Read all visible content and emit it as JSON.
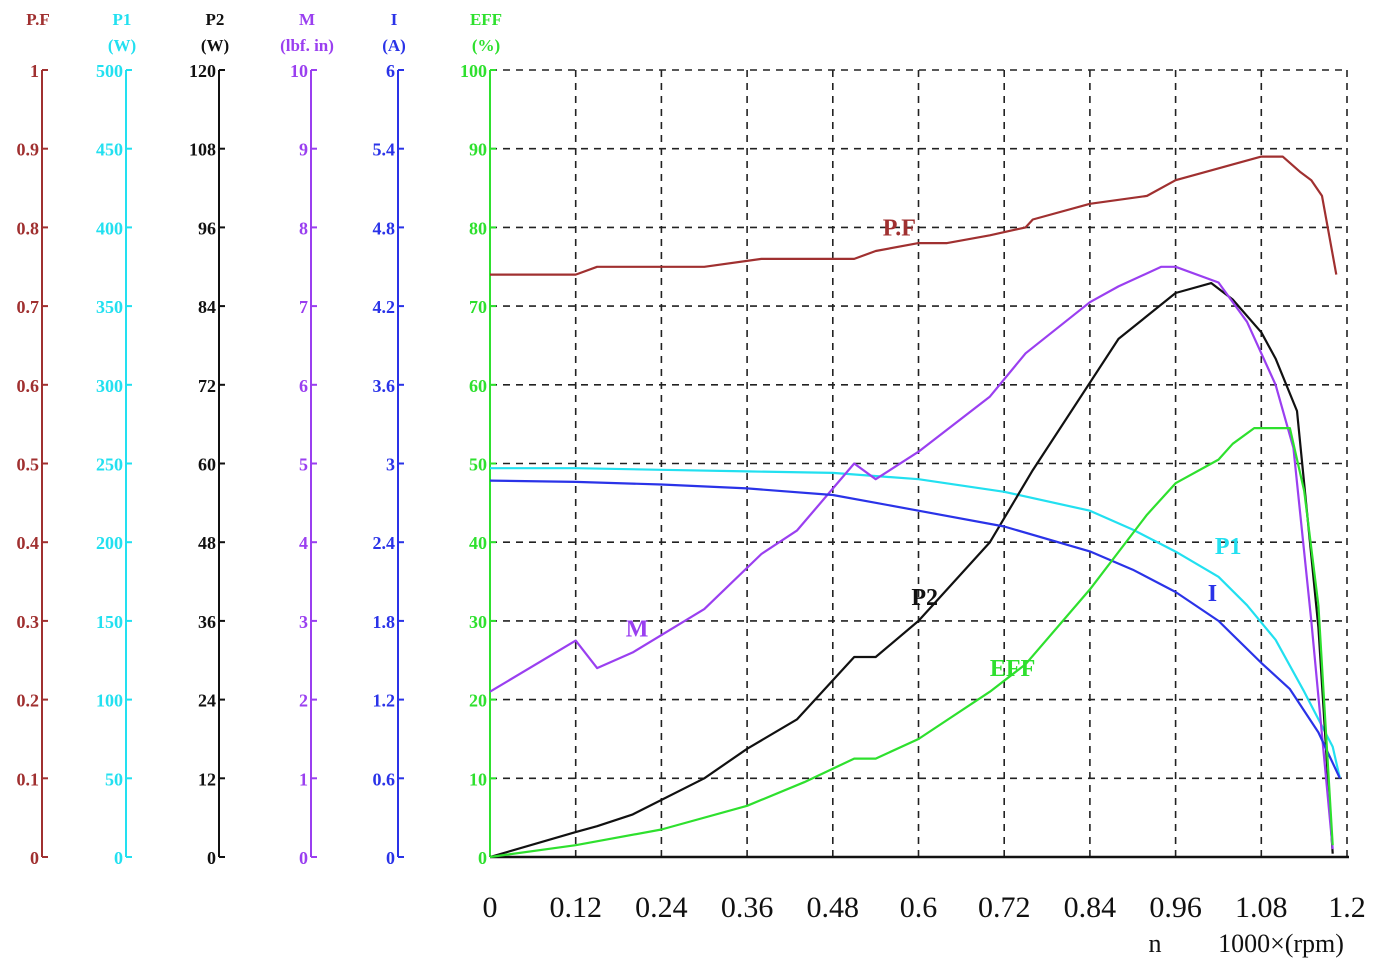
{
  "chart_data": {
    "type": "line",
    "x_ticks": [
      "0",
      "0.12",
      "0.24",
      "0.36",
      "0.48",
      "0.6",
      "0.72",
      "0.84",
      "0.96",
      "1.08",
      "1.2"
    ],
    "x_label_left": "n",
    "x_label_right": "1000×(rpm)",
    "xlim": [
      0,
      1.2
    ],
    "grid": true,
    "axes": [
      {
        "id": "pf",
        "name": "P.F",
        "unit": "",
        "color": "#a03030",
        "ticks": [
          "0",
          "0.1",
          "0.2",
          "0.3",
          "0.4",
          "0.5",
          "0.6",
          "0.7",
          "0.8",
          "0.9",
          "1"
        ],
        "ylim": [
          0,
          1
        ]
      },
      {
        "id": "p1",
        "name": "P1",
        "unit": "(W)",
        "color": "#22e0f0",
        "ticks": [
          "0",
          "50",
          "100",
          "150",
          "200",
          "250",
          "300",
          "350",
          "400",
          "450",
          "500"
        ],
        "ylim": [
          0,
          500
        ]
      },
      {
        "id": "p2",
        "name": "P2",
        "unit": "(W)",
        "color": "#111111",
        "ticks": [
          "0",
          "12",
          "24",
          "36",
          "48",
          "60",
          "72",
          "84",
          "96",
          "108",
          "120"
        ],
        "ylim": [
          0,
          120
        ]
      },
      {
        "id": "m",
        "name": "M",
        "unit": "(lbf. in)",
        "color": "#9a3ff0",
        "ticks": [
          "0",
          "1",
          "2",
          "3",
          "4",
          "5",
          "6",
          "7",
          "8",
          "9",
          "10"
        ],
        "ylim": [
          0,
          10
        ]
      },
      {
        "id": "i",
        "name": "I",
        "unit": "(A)",
        "color": "#2a33e8",
        "ticks": [
          "0",
          "0.6",
          "1.2",
          "1.8",
          "2.4",
          "3",
          "3.6",
          "4.2",
          "4.8",
          "5.4",
          "6"
        ],
        "ylim": [
          0,
          6
        ]
      },
      {
        "id": "eff",
        "name": "EFF",
        "unit": "(%)",
        "color": "#2ee02e",
        "ticks": [
          "0",
          "10",
          "20",
          "30",
          "40",
          "50",
          "60",
          "70",
          "80",
          "90",
          "100"
        ],
        "ylim": [
          0,
          100
        ]
      }
    ],
    "series": [
      {
        "name": "P.F",
        "axis": "pf",
        "color": "#a03030",
        "x": [
          0,
          0.12,
          0.15,
          0.3,
          0.38,
          0.51,
          0.54,
          0.6,
          0.64,
          0.7,
          0.75,
          0.76,
          0.84,
          0.92,
          0.96,
          1.0,
          1.04,
          1.08,
          1.11,
          1.135,
          1.15,
          1.165,
          1.185
        ],
        "y": [
          0.74,
          0.74,
          0.75,
          0.75,
          0.76,
          0.76,
          0.77,
          0.78,
          0.78,
          0.79,
          0.8,
          0.81,
          0.83,
          0.84,
          0.86,
          0.87,
          0.88,
          0.89,
          0.89,
          0.87,
          0.86,
          0.84,
          0.74
        ]
      },
      {
        "name": "P1",
        "axis": "p1",
        "color": "#22e0f0",
        "x": [
          0,
          0.12,
          0.24,
          0.36,
          0.48,
          0.6,
          0.72,
          0.84,
          0.9,
          0.96,
          1.02,
          1.06,
          1.1,
          1.14,
          1.18,
          1.19
        ],
        "y": [
          247,
          247,
          246,
          245,
          244,
          240,
          232,
          220,
          208,
          194,
          178,
          160,
          138,
          105,
          70,
          50
        ]
      },
      {
        "name": "P2",
        "axis": "p2",
        "color": "#111111",
        "x": [
          0,
          0.12,
          0.15,
          0.2,
          0.3,
          0.36,
          0.43,
          0.51,
          0.54,
          0.6,
          0.7,
          0.76,
          0.88,
          0.96,
          1.01,
          1.04,
          1.08,
          1.1,
          1.13,
          1.16,
          1.18
        ],
        "y": [
          0,
          3.8,
          4.7,
          6.5,
          12,
          16.5,
          21,
          30.5,
          30.5,
          36,
          48,
          59,
          79,
          86,
          87.5,
          85,
          80,
          76,
          68,
          35,
          0.5
        ]
      },
      {
        "name": "M",
        "axis": "m",
        "color": "#9a3ff0",
        "x": [
          0,
          0.12,
          0.15,
          0.2,
          0.3,
          0.38,
          0.43,
          0.51,
          0.54,
          0.6,
          0.7,
          0.75,
          0.84,
          0.88,
          0.94,
          0.96,
          1.02,
          1.06,
          1.1,
          1.125,
          1.15,
          1.18
        ],
        "y": [
          2.1,
          2.75,
          2.4,
          2.6,
          3.15,
          3.85,
          4.15,
          5.0,
          4.8,
          5.15,
          5.85,
          6.4,
          7.05,
          7.25,
          7.5,
          7.5,
          7.3,
          6.8,
          6.0,
          5.2,
          3.0,
          0.1
        ]
      },
      {
        "name": "I",
        "axis": "i",
        "color": "#2a33e8",
        "x": [
          0,
          0.12,
          0.24,
          0.36,
          0.48,
          0.54,
          0.6,
          0.72,
          0.84,
          0.9,
          0.96,
          1.02,
          1.08,
          1.12,
          1.16,
          1.19
        ],
        "y": [
          2.87,
          2.86,
          2.84,
          2.81,
          2.76,
          2.7,
          2.64,
          2.52,
          2.33,
          2.19,
          2.02,
          1.8,
          1.48,
          1.28,
          0.95,
          0.6
        ]
      },
      {
        "name": "EFF",
        "axis": "eff",
        "color": "#2ee02e",
        "x": [
          0,
          0.12,
          0.24,
          0.36,
          0.44,
          0.51,
          0.54,
          0.6,
          0.7,
          0.75,
          0.84,
          0.92,
          0.96,
          1.02,
          1.04,
          1.07,
          1.1,
          1.12,
          1.14,
          1.16,
          1.18
        ],
        "y": [
          0,
          1.5,
          3.5,
          6.5,
          9.5,
          12.5,
          12.5,
          15,
          21,
          24.5,
          34,
          43.5,
          47.5,
          50.5,
          52.5,
          54.5,
          54.5,
          54.5,
          46.5,
          32,
          1.5
        ]
      }
    ],
    "curve_labels": [
      {
        "series": "P.F",
        "text": "P.F",
        "x": 0.55,
        "y_pct": 79.0
      },
      {
        "series": "P1",
        "text": "P1",
        "x": 1.015,
        "y_pct": 38.5
      },
      {
        "series": "P2",
        "text": "P2",
        "x": 0.59,
        "y_pct": 32.0
      },
      {
        "series": "M",
        "text": "M",
        "x": 0.19,
        "y_pct": 28.0
      },
      {
        "series": "I",
        "text": "I",
        "x": 1.005,
        "y_pct": 32.5
      },
      {
        "series": "EFF",
        "text": "EFF",
        "x": 0.7,
        "y_pct": 23.0
      }
    ]
  }
}
